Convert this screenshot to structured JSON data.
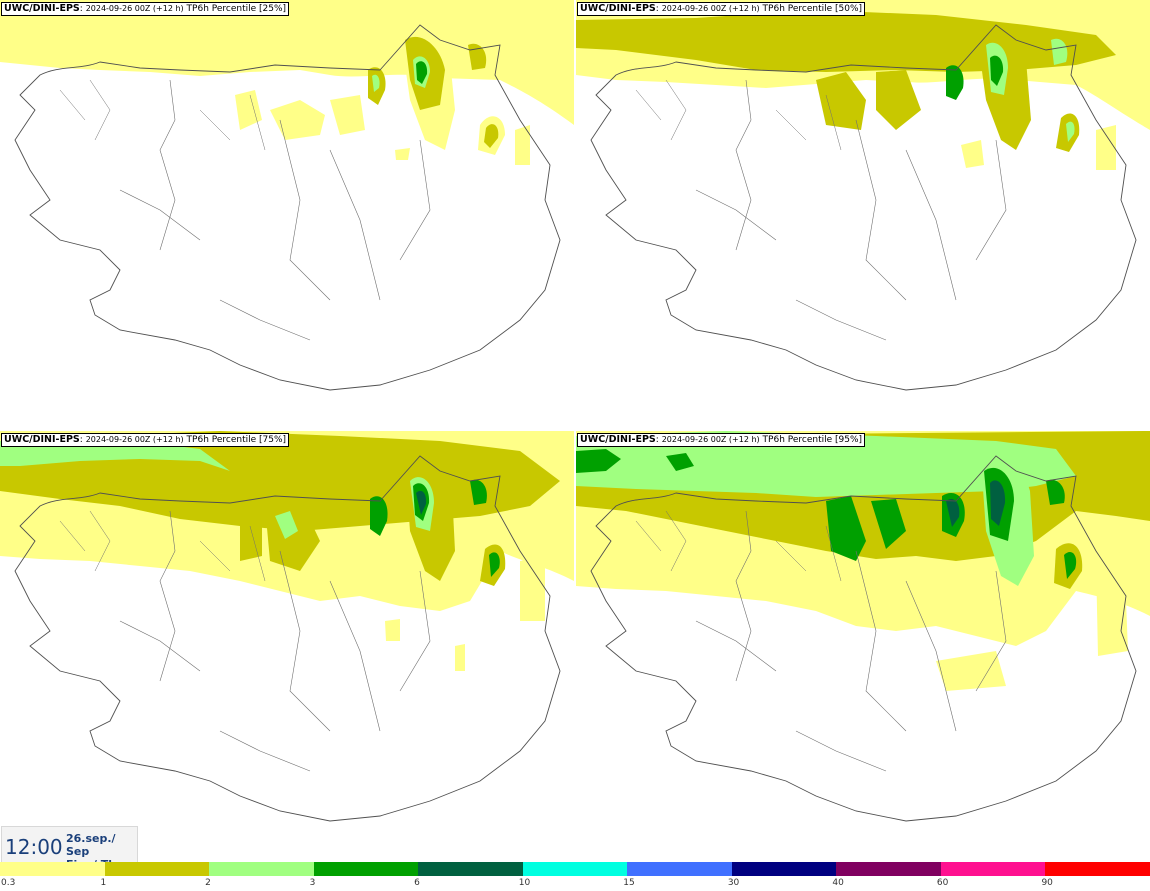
{
  "panels": [
    {
      "model": "UWC/DINI-EPS",
      "run": "2024-09-26 00Z (+12 h)",
      "field": "TP6h Percentile",
      "percentile": "[25%]"
    },
    {
      "model": "UWC/DINI-EPS",
      "run": "2024-09-26 00Z (+12 h)",
      "field": "TP6h Percentile",
      "percentile": "[50%]"
    },
    {
      "model": "UWC/DINI-EPS",
      "run": "2024-09-26 00Z (+12 h)",
      "field": "TP6h Percentile",
      "percentile": "[75%]"
    },
    {
      "model": "UWC/DINI-EPS",
      "run": "2024-09-26 00Z (+12 h)",
      "field": "TP6h Percentile",
      "percentile": "[95%]"
    }
  ],
  "time": {
    "clock": "12:00",
    "date_line1": "26.sep./ Sep",
    "date_line2": "Fim./ Thu"
  },
  "colorbar": {
    "labels": [
      "0.3",
      "1",
      "2",
      "3",
      "6",
      "10",
      "15",
      "30",
      "40",
      "60",
      "90"
    ],
    "colors": [
      "#ffff88",
      "#c8c800",
      "#a0ff80",
      "#00a000",
      "#006040",
      "#00ffe0",
      "#4070ff",
      "#000080",
      "#800060",
      "#ff1090",
      "#ff0000"
    ]
  },
  "fill_colors": {
    "light": "#ffff88",
    "olive": "#c8c800",
    "pale_green": "#a0ff80",
    "green": "#00a000",
    "dark_green": "#006040",
    "land": "#ffffff",
    "outline": "#505050"
  }
}
